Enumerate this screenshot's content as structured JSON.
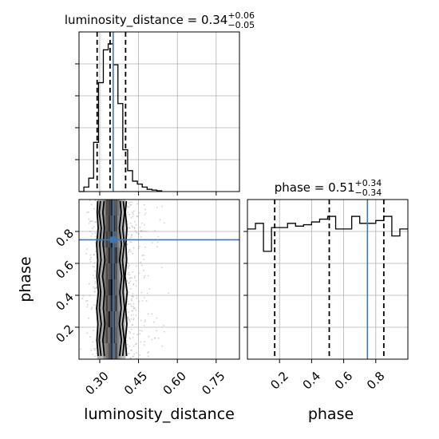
{
  "chart_data": {
    "type": "corner",
    "colors": {
      "truth": "#3a78b8",
      "line": "#000000",
      "grid": "#b0b0b0",
      "point": "#9a9a9a"
    },
    "grid": true,
    "parameters": [
      {
        "name": "luminosity_distance",
        "axis_label": "luminosity_distance",
        "range": [
          0.22,
          0.84
        ],
        "ticks": [
          0.3,
          0.45,
          0.6,
          0.75
        ],
        "tick_labels": [
          "0.30",
          "0.45",
          "0.60",
          "0.75"
        ],
        "truth": 0.352,
        "median": 0.34,
        "lower_err": 0.05,
        "upper_err": 0.06,
        "quantiles": [
          0.29,
          0.34,
          0.4
        ]
      },
      {
        "name": "phase",
        "axis_label": "phase",
        "range": [
          0.0,
          1.0
        ],
        "ticks": [
          0.2,
          0.4,
          0.6,
          0.8
        ],
        "tick_labels": [
          "0.2",
          "0.4",
          "0.6",
          "0.8"
        ],
        "truth": 0.748,
        "median": 0.51,
        "lower_err": 0.34,
        "upper_err": 0.34,
        "quantiles": [
          0.17,
          0.51,
          0.85
        ]
      }
    ],
    "titles": [
      {
        "param": "luminosity_distance",
        "prefix": "luminosity_distance = ",
        "value": "0.34",
        "sup": "+0.06",
        "sub": "−0.05"
      },
      {
        "param": "phase",
        "prefix": "phase = ",
        "value": "0.51",
        "sup": "+0.34",
        "sub": "−0.34"
      }
    ],
    "hist_luminosity_distance": {
      "edges": [
        0.22,
        0.2388,
        0.2576,
        0.2764,
        0.2952,
        0.314,
        0.3328,
        0.3516,
        0.3704,
        0.3892,
        0.408,
        0.4268,
        0.4456,
        0.4644,
        0.4832,
        0.502,
        0.5208,
        0.5396
      ],
      "counts": [
        0,
        0.03,
        0.09,
        0.33,
        0.73,
        0.95,
        0.99,
        0.85,
        0.59,
        0.28,
        0.14,
        0.07,
        0.05,
        0.03,
        0.015,
        0.01,
        0.005
      ],
      "ylim": [
        0,
        1.07
      ]
    },
    "hist_phase": {
      "edges": [
        0.0,
        0.05,
        0.1,
        0.15,
        0.2,
        0.25,
        0.3,
        0.35,
        0.4,
        0.45,
        0.5,
        0.55,
        0.6,
        0.65,
        0.7,
        0.75,
        0.8,
        0.85,
        0.9,
        0.95,
        1.0
      ],
      "counts": [
        0.93,
        0.97,
        0.77,
        0.94,
        0.94,
        0.97,
        0.95,
        0.96,
        0.98,
        1.0,
        1.02,
        0.93,
        0.93,
        1.02,
        0.97,
        0.97,
        0.99,
        1.02,
        0.88,
        0.93
      ],
      "ylim": [
        0,
        1.14
      ]
    },
    "density": {
      "x_edges": [
        0.29,
        0.314,
        0.323,
        0.332,
        0.341,
        0.35,
        0.359,
        0.368,
        0.377,
        0.386,
        0.4
      ],
      "y_edges": [
        0.0,
        0.1,
        0.2,
        0.3,
        0.4,
        0.5,
        0.6,
        0.7,
        0.8,
        0.9,
        1.0
      ],
      "levels": [
        [
          0.25,
          0.45,
          0.55,
          0.7,
          0.85,
          0.6,
          0.75,
          0.45,
          0.3,
          0.2
        ],
        [
          0.3,
          0.55,
          0.75,
          0.6,
          0.9,
          0.85,
          0.65,
          0.5,
          0.35,
          0.2
        ],
        [
          0.25,
          0.5,
          0.7,
          0.95,
          0.75,
          0.85,
          0.6,
          0.55,
          0.3,
          0.2
        ],
        [
          0.3,
          0.45,
          0.8,
          0.65,
          0.9,
          0.7,
          0.8,
          0.45,
          0.35,
          0.2
        ],
        [
          0.25,
          0.55,
          0.7,
          0.85,
          1.0,
          0.75,
          0.65,
          0.5,
          0.3,
          0.2
        ],
        [
          0.3,
          0.5,
          0.75,
          0.7,
          0.85,
          0.9,
          0.7,
          0.45,
          0.35,
          0.2
        ],
        [
          0.25,
          0.45,
          0.65,
          0.9,
          0.8,
          0.75,
          0.85,
          0.55,
          0.3,
          0.2
        ],
        [
          0.3,
          0.55,
          0.8,
          0.75,
          0.95,
          0.7,
          0.65,
          0.5,
          0.35,
          0.2
        ],
        [
          0.25,
          0.5,
          0.7,
          0.85,
          0.75,
          0.9,
          0.75,
          0.45,
          0.3,
          0.2
        ],
        [
          0.3,
          0.45,
          0.75,
          0.8,
          0.9,
          0.7,
          0.7,
          0.55,
          0.35,
          0.2
        ]
      ],
      "contours": [
        {
          "x": [
            0.318,
            0.312,
            0.32,
            0.314,
            0.319,
            0.311,
            0.32,
            0.313,
            0.318,
            0.312,
            0.317
          ],
          "y": [
            0.02,
            0.12,
            0.22,
            0.32,
            0.42,
            0.52,
            0.62,
            0.72,
            0.82,
            0.92,
            0.99
          ]
        },
        {
          "x": [
            0.305,
            0.298,
            0.306,
            0.299,
            0.304,
            0.297,
            0.305,
            0.3,
            0.306,
            0.298,
            0.303
          ],
          "y": [
            0.02,
            0.12,
            0.22,
            0.32,
            0.42,
            0.52,
            0.62,
            0.72,
            0.82,
            0.92,
            0.99
          ]
        },
        {
          "x": [
            0.294,
            0.289,
            0.293,
            0.288,
            0.295,
            0.289,
            0.292,
            0.288,
            0.294,
            0.29,
            0.292
          ],
          "y": [
            0.02,
            0.12,
            0.22,
            0.32,
            0.42,
            0.52,
            0.62,
            0.72,
            0.82,
            0.92,
            0.99
          ]
        },
        {
          "x": [
            0.377,
            0.384,
            0.376,
            0.383,
            0.378,
            0.385,
            0.377,
            0.384,
            0.376,
            0.383,
            0.379
          ],
          "y": [
            0.02,
            0.12,
            0.22,
            0.32,
            0.42,
            0.52,
            0.62,
            0.72,
            0.82,
            0.92,
            0.99
          ]
        },
        {
          "x": [
            0.389,
            0.395,
            0.388,
            0.396,
            0.39,
            0.394,
            0.388,
            0.395,
            0.389,
            0.396,
            0.391
          ],
          "y": [
            0.02,
            0.12,
            0.22,
            0.32,
            0.42,
            0.52,
            0.62,
            0.72,
            0.82,
            0.92,
            0.99
          ]
        },
        {
          "x": [
            0.404,
            0.399,
            0.405,
            0.4,
            0.406,
            0.398,
            0.404,
            0.401,
            0.405,
            0.399,
            0.403
          ],
          "y": [
            0.02,
            0.12,
            0.22,
            0.32,
            0.42,
            0.52,
            0.62,
            0.72,
            0.82,
            0.92,
            0.99
          ]
        }
      ]
    }
  }
}
